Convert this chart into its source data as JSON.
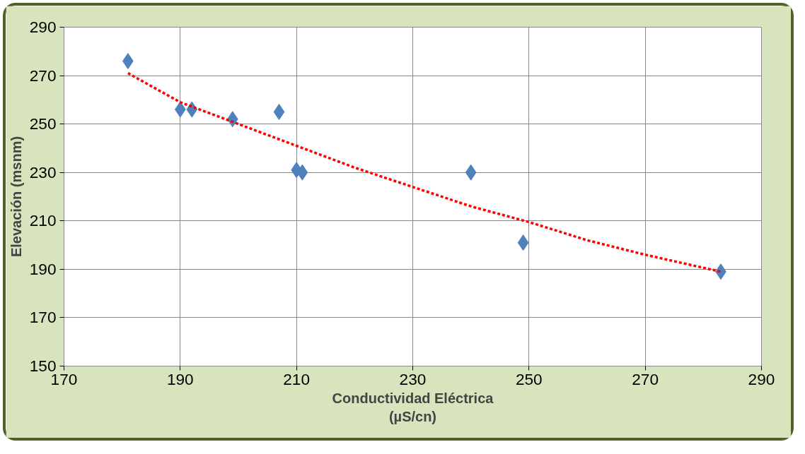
{
  "chart_data": {
    "type": "scatter",
    "xlabel": "Conductividad Eléctrica\n(µS/cn)",
    "ylabel": "Elevación (msnm)",
    "x": [
      181,
      190,
      192,
      199,
      207,
      210,
      211,
      240,
      249,
      283
    ],
    "series": [
      {
        "color": "#4f81bd",
        "marker": "diamond",
        "values": [
          276,
          256,
          256,
          252,
          255,
          231,
          230,
          230,
          201,
          189
        ]
      },
      {
        "type": "line",
        "color": "#ff0000",
        "line_style": "dashed",
        "marker": "none",
        "x": [
          181,
          190,
          200,
          210,
          220,
          230,
          240,
          250,
          260,
          270,
          283
        ],
        "values": [
          271,
          259,
          250,
          241,
          232,
          224,
          216,
          209.5,
          202,
          196,
          189
        ]
      }
    ],
    "xlim": [
      170,
      290
    ],
    "ylim": [
      150,
      290
    ],
    "xticks": [
      170,
      190,
      210,
      230,
      250,
      270,
      290
    ],
    "yticks": [
      150,
      170,
      190,
      210,
      230,
      250,
      270,
      290
    ],
    "grid": true
  }
}
